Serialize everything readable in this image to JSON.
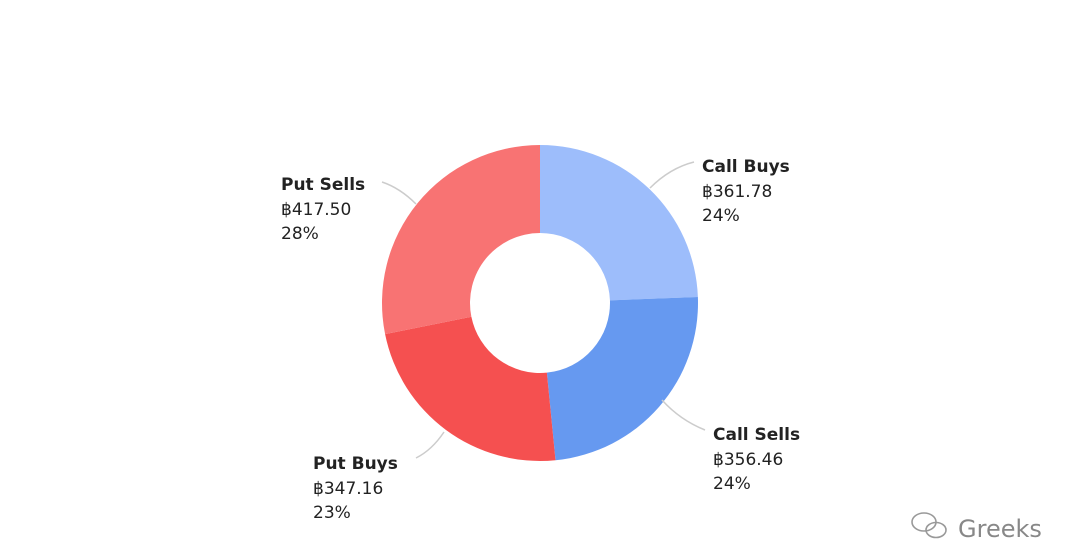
{
  "chart_data": {
    "type": "donut",
    "categories": [
      "Call Buys",
      "Call Sells",
      "Put Buys",
      "Put Sells"
    ],
    "values": [
      361.78,
      356.46,
      347.16,
      417.5
    ],
    "value_labels": [
      "฿361.78",
      "฿356.46",
      "฿347.16",
      "฿417.50"
    ],
    "percents": [
      24,
      24,
      23,
      28
    ],
    "percent_labels": [
      "24%",
      "24%",
      "23%",
      "28%"
    ],
    "colors": [
      "#9dbdfb",
      "#6699f0",
      "#f55050",
      "#f87373"
    ]
  },
  "watermark": "Greeks"
}
